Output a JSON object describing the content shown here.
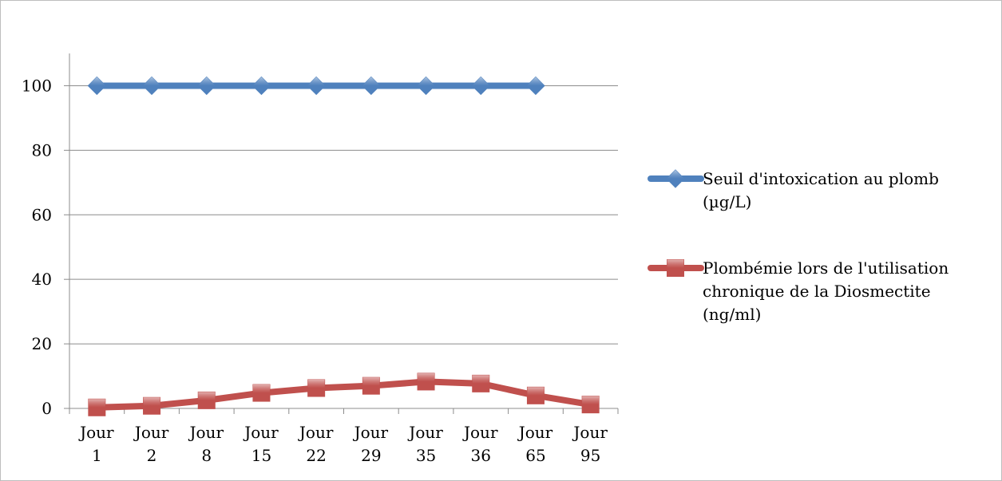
{
  "chart_data": {
    "type": "line",
    "categories": [
      [
        "Jour",
        "1"
      ],
      [
        "Jour",
        "2"
      ],
      [
        "Jour",
        "8"
      ],
      [
        "Jour",
        "15"
      ],
      [
        "Jour",
        "22"
      ],
      [
        "Jour",
        "29"
      ],
      [
        "Jour",
        "35"
      ],
      [
        "Jour",
        "36"
      ],
      [
        "Jour",
        "65"
      ],
      [
        "Jour",
        "95"
      ]
    ],
    "ylim": [
      0,
      110
    ],
    "yticks": [
      "0",
      "20",
      "40",
      "60",
      "80",
      "100"
    ],
    "grid": true,
    "legend_position": "right",
    "series": [
      {
        "name": [
          "Seuil d'intoxication au plomb",
          "(µg/L)"
        ],
        "marker": "diamond",
        "color": "#4F81BD",
        "values": [
          100,
          100,
          100,
          100,
          100,
          100,
          100,
          100,
          100,
          null
        ]
      },
      {
        "name": [
          "Plombémie lors de l'utilisation",
          "chronique de la Diosmectite",
          "(ng/ml)"
        ],
        "marker": "square",
        "color": "#C0504D",
        "values": [
          0.3,
          0.8,
          2.5,
          4.8,
          6.3,
          7.0,
          8.3,
          7.7,
          4.0,
          1.2
        ]
      }
    ]
  }
}
